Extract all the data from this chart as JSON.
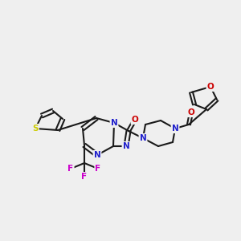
{
  "bg_color": "#efefef",
  "bond_color": "#1a1a1a",
  "bond_lw": 1.5,
  "atom_colors": {
    "N": "#2020cc",
    "O": "#cc0000",
    "S": "#cccc00",
    "F": "#cc00cc",
    "C": "#1a1a1a"
  },
  "font_size": 7.5,
  "font_size_small": 6.5
}
